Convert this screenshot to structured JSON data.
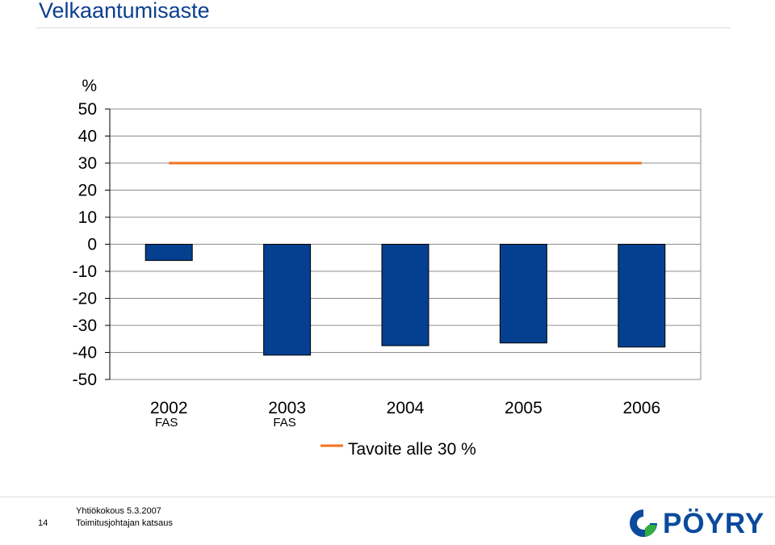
{
  "slide": {
    "title": "Velkaantumisaste",
    "page_number": "14",
    "footer_line1": "Yhtiökokous 5.3.2007",
    "footer_line2": "Toimitusjohtajan katsaus",
    "logo_text": "PÖYRY"
  },
  "colors": {
    "title": "#0b3f8f",
    "bar": "#04408f",
    "target_line": "#f0731e",
    "grid": "#8c8c8c"
  },
  "chart_data": {
    "type": "bar",
    "ylabel": "%",
    "ylim": [
      -50,
      50
    ],
    "yticks": [
      50,
      40,
      30,
      20,
      10,
      0,
      -10,
      -20,
      -30,
      -40,
      -50
    ],
    "categories": [
      "2002",
      "2003",
      "2004",
      "2005",
      "2006"
    ],
    "category_sublabels": [
      "FAS",
      "FAS",
      "",
      "",
      ""
    ],
    "series": [
      {
        "values": [
          -6,
          -41,
          -37.5,
          -36.5,
          -38
        ]
      },
      {
        "name": "Tavoite alle 30 %",
        "type": "line",
        "values": [
          30,
          30,
          30,
          30,
          30
        ]
      }
    ],
    "legend": {
      "position": "bottom",
      "label": "Tavoite alle 30 %"
    },
    "grid": true
  }
}
